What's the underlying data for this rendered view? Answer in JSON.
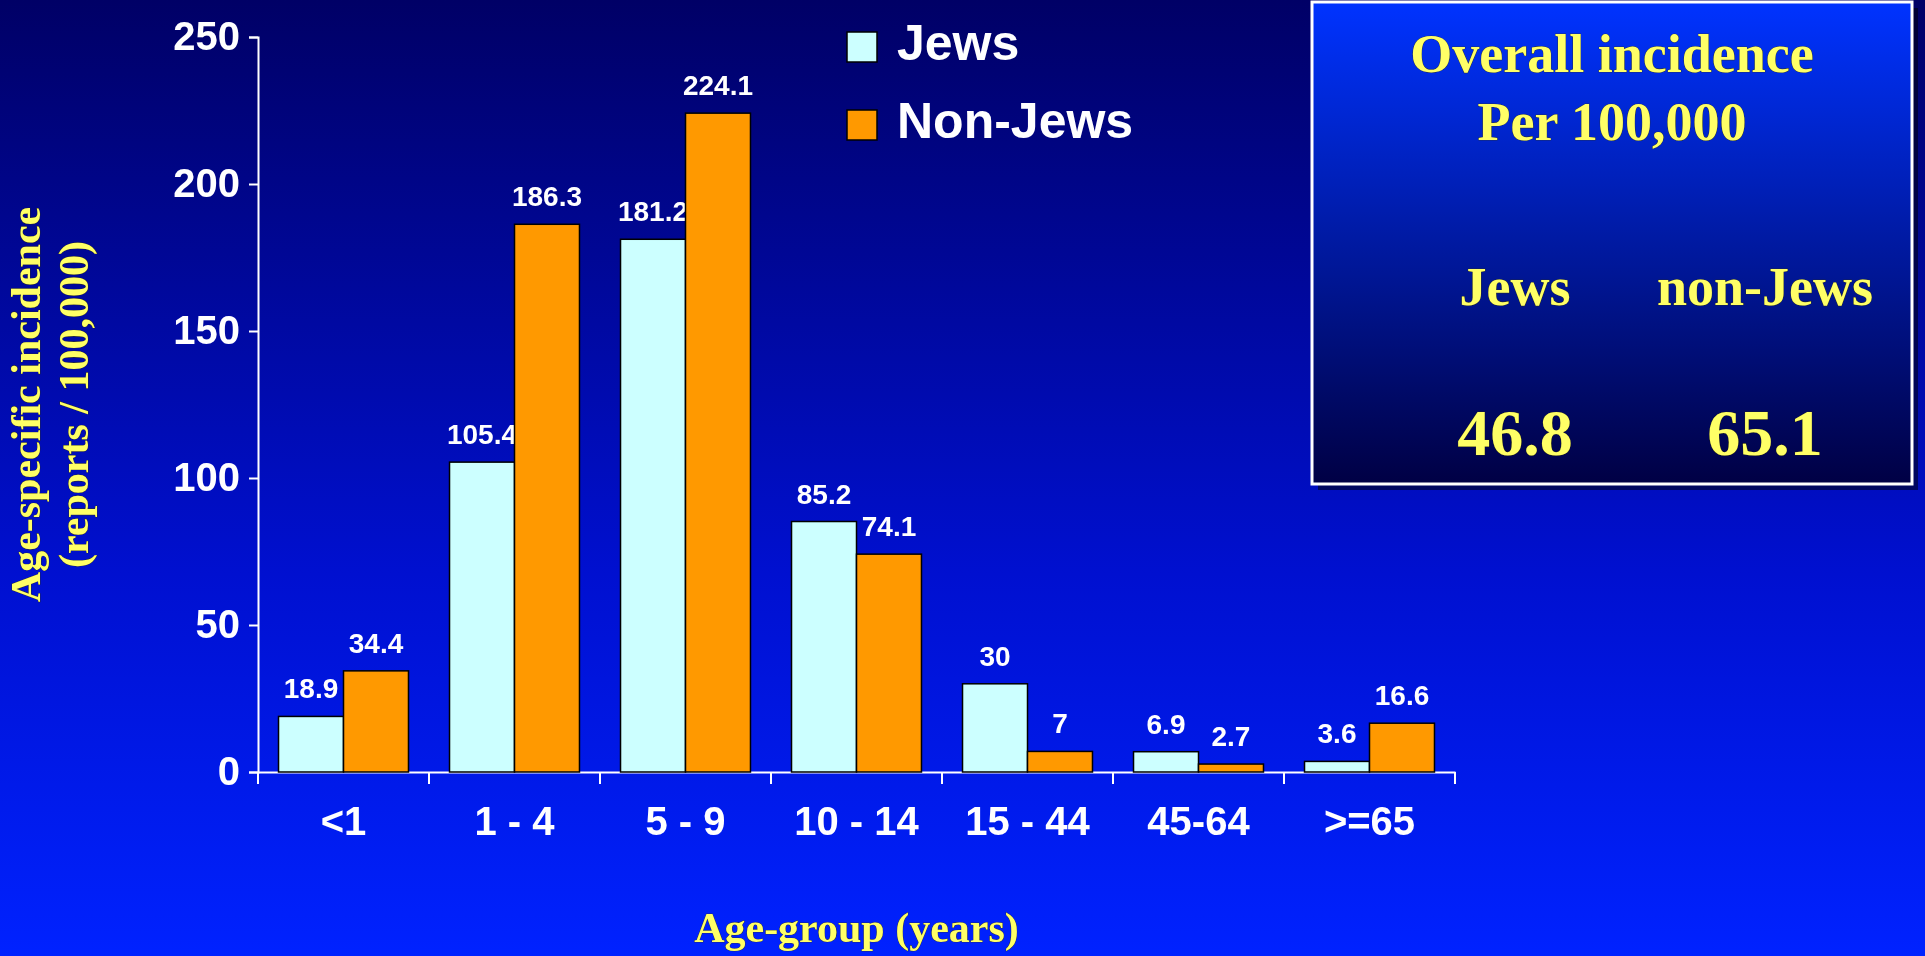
{
  "chart_data": {
    "type": "bar",
    "xlabel": "Age-group (years)",
    "ylabel": "Age-specific incidence\n(reports / 100,000)",
    "categories": [
      "<1",
      "1 - 4",
      "5 - 9",
      "10 - 14",
      "15 - 44",
      "45-64",
      ">=65"
    ],
    "series": [
      {
        "name": "Jews",
        "color": "#ccffff",
        "values": [
          18.9,
          105.4,
          181.2,
          85.2,
          30,
          6.9,
          3.6
        ]
      },
      {
        "name": "Non-Jews",
        "color": "#ff9900",
        "values": [
          34.4,
          186.3,
          224.1,
          74.1,
          7,
          2.7,
          16.6
        ]
      }
    ],
    "ylim": [
      0,
      250
    ],
    "yticks": [
      0,
      50,
      100,
      150,
      200,
      250
    ],
    "grid": false,
    "legend": "top",
    "data_labels": true,
    "annotations": [
      "Overall incidence\nPer 100,000",
      "Jews",
      "non-Jews",
      "46.8",
      "65.1"
    ]
  }
}
